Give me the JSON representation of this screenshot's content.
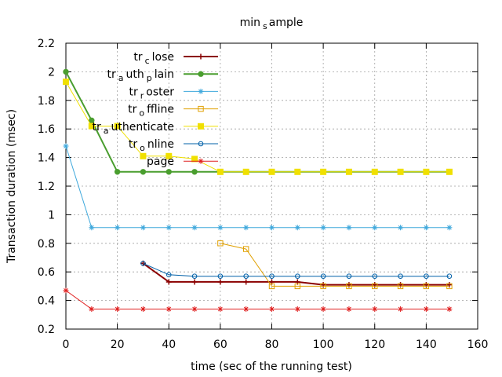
{
  "chart_data": {
    "type": "line",
    "title": {
      "main": "min",
      "sub": "s",
      "rest": "ample"
    },
    "xlabel": "time (sec of the running test)",
    "ylabel": "Transaction duration (msec)",
    "xlim": [
      0,
      160
    ],
    "ylim": [
      0.2,
      2.2
    ],
    "xticks": [
      "0",
      "20",
      "40",
      "60",
      "80",
      "100",
      "120",
      "140",
      "160"
    ],
    "yticks": [
      "0.2",
      "0.4",
      "0.6",
      "0.8",
      "1",
      "1.2",
      "1.4",
      "1.6",
      "1.8",
      "2",
      "2.2"
    ],
    "grid": true,
    "legend_position": "top-left",
    "series": [
      {
        "name": {
          "main": "tr",
          "sub": "c",
          "rest": "lose"
        },
        "color": "#8b0000",
        "marker": "plus",
        "width": 2,
        "x": [
          30,
          40,
          50,
          60,
          70,
          80,
          90,
          100,
          110,
          120,
          130,
          140,
          149
        ],
        "y": [
          0.66,
          0.53,
          0.53,
          0.53,
          0.53,
          0.53,
          0.53,
          0.51,
          0.51,
          0.51,
          0.51,
          0.51,
          0.51
        ]
      },
      {
        "name": {
          "main": "tr",
          "sub": "a",
          "rest": "uth",
          "sub2": "p",
          "rest2": "lain"
        },
        "color": "#4a9e2f",
        "marker": "filled-circle",
        "width": 2,
        "x": [
          0,
          10,
          20,
          30,
          40,
          50,
          60,
          70,
          80,
          90,
          100,
          110,
          120,
          130,
          140,
          149
        ],
        "y": [
          2.0,
          1.66,
          1.3,
          1.3,
          1.3,
          1.3,
          1.3,
          1.3,
          1.3,
          1.3,
          1.3,
          1.3,
          1.3,
          1.3,
          1.3,
          1.3
        ]
      },
      {
        "name": {
          "main": "tr",
          "sub": "r",
          "rest": "oster"
        },
        "color": "#3ea8dc",
        "marker": "star",
        "width": 1,
        "x": [
          0,
          10,
          20,
          30,
          40,
          50,
          60,
          70,
          80,
          90,
          100,
          110,
          120,
          130,
          140,
          149
        ],
        "y": [
          1.48,
          0.91,
          0.91,
          0.91,
          0.91,
          0.91,
          0.91,
          0.91,
          0.91,
          0.91,
          0.91,
          0.91,
          0.91,
          0.91,
          0.91,
          0.91
        ]
      },
      {
        "name": {
          "main": "tr",
          "sub": "o",
          "rest": "ffline"
        },
        "color": "#e0a000",
        "marker": "open-square",
        "width": 1,
        "x": [
          60,
          70,
          80,
          90,
          100,
          110,
          120,
          130,
          140,
          149
        ],
        "y": [
          0.8,
          0.76,
          0.5,
          0.5,
          0.5,
          0.5,
          0.5,
          0.5,
          0.5,
          0.5
        ]
      },
      {
        "name": {
          "main": "tr",
          "sub": "a",
          "rest": "uthenticate"
        },
        "color": "#f0e000",
        "marker": "filled-square",
        "width": 1,
        "x": [
          0,
          10,
          20,
          30,
          40,
          50,
          60,
          70,
          80,
          90,
          100,
          110,
          120,
          130,
          140,
          149
        ],
        "y": [
          1.93,
          1.62,
          1.62,
          1.41,
          1.41,
          1.39,
          1.3,
          1.3,
          1.3,
          1.3,
          1.3,
          1.3,
          1.3,
          1.3,
          1.3,
          1.3
        ]
      },
      {
        "name": {
          "main": "tr",
          "sub": "o",
          "rest": "nline"
        },
        "color": "#0060a8",
        "marker": "open-circle",
        "width": 1,
        "x": [
          30,
          40,
          50,
          60,
          70,
          80,
          90,
          100,
          110,
          120,
          130,
          140,
          149
        ],
        "y": [
          0.66,
          0.58,
          0.57,
          0.57,
          0.57,
          0.57,
          0.57,
          0.57,
          0.57,
          0.57,
          0.57,
          0.57,
          0.57
        ]
      },
      {
        "name": {
          "main": "page"
        },
        "color": "#e02020",
        "marker": "star",
        "width": 1,
        "x": [
          0,
          10,
          20,
          30,
          40,
          50,
          60,
          70,
          80,
          90,
          100,
          110,
          120,
          130,
          140,
          149
        ],
        "y": [
          0.47,
          0.34,
          0.34,
          0.34,
          0.34,
          0.34,
          0.34,
          0.34,
          0.34,
          0.34,
          0.34,
          0.34,
          0.34,
          0.34,
          0.34,
          0.34
        ]
      }
    ]
  }
}
